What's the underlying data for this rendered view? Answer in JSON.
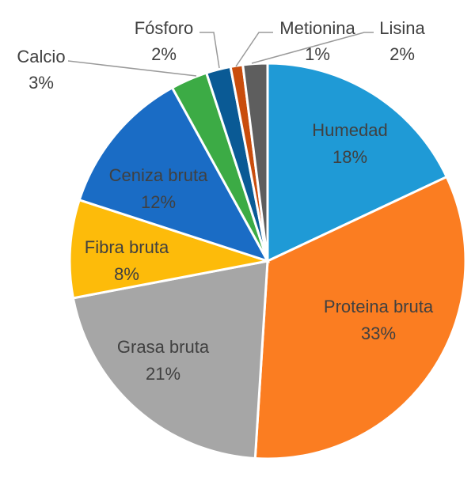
{
  "chart_data": {
    "type": "pie",
    "title": "",
    "slices": [
      {
        "label": "Humedad",
        "value": 18,
        "value_label": "18%",
        "color": "#1f9ad6"
      },
      {
        "label": "Proteina bruta",
        "value": 33,
        "value_label": "33%",
        "color": "#fb7d21"
      },
      {
        "label": "Grasa bruta",
        "value": 21,
        "value_label": "21%",
        "color": "#a6a6a6"
      },
      {
        "label": "Fibra bruta",
        "value": 8,
        "value_label": "8%",
        "color": "#fdbb0a"
      },
      {
        "label": "Ceniza bruta",
        "value": 12,
        "value_label": "12%",
        "color": "#1a6cc5"
      },
      {
        "label": "Calcio",
        "value": 3,
        "value_label": "3%",
        "color": "#3cab45"
      },
      {
        "label": "Fósforo",
        "value": 2,
        "value_label": "2%",
        "color": "#0a5a95"
      },
      {
        "label": "Metionina",
        "value": 1,
        "value_label": "1%",
        "color": "#c94d0d"
      },
      {
        "label": "Lisina",
        "value": 2,
        "value_label": "2%",
        "color": "#5e5e5e"
      }
    ],
    "legend": "none"
  }
}
